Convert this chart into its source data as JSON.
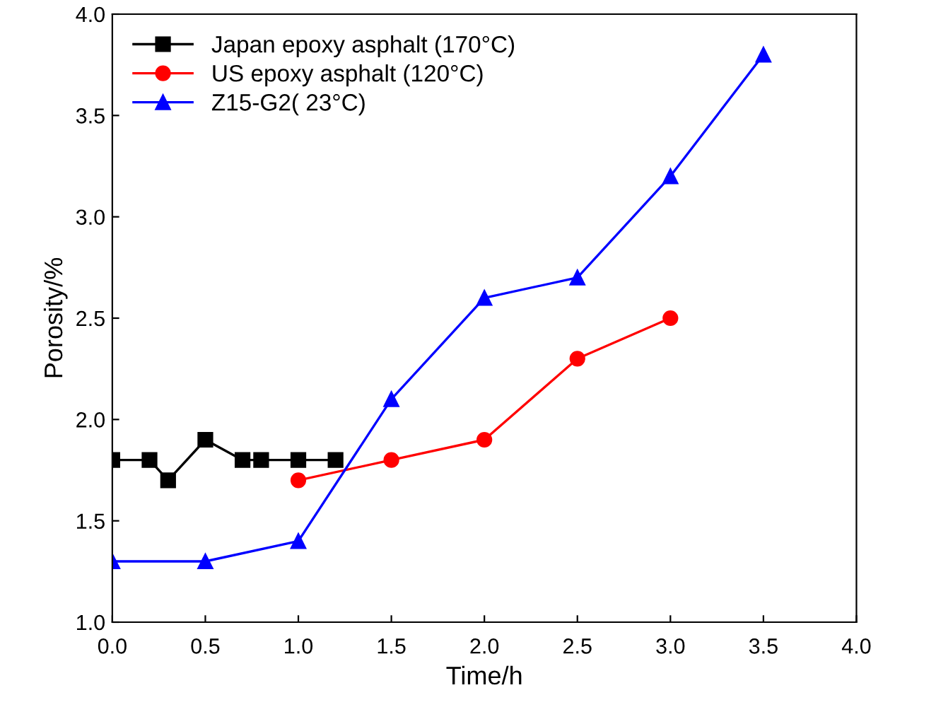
{
  "chart_data": {
    "type": "line",
    "xlabel": "Time/h",
    "ylabel": "Porosity/%",
    "xlim": [
      0,
      4
    ],
    "ylim": [
      1.0,
      4.0
    ],
    "xticks": [
      {
        "value": 0,
        "label": "0.0"
      },
      0.5,
      {
        "value": 1,
        "label": "1.0"
      },
      1.5,
      {
        "value": 2,
        "label": "2.0"
      },
      2.5,
      {
        "value": 3,
        "label": "3.0"
      },
      3.5,
      {
        "value": 4,
        "label": "4.0"
      }
    ],
    "yticks": [
      {
        "value": 1,
        "label": "1.0"
      },
      1.5,
      {
        "value": 2,
        "label": "2.0"
      },
      2.5,
      {
        "value": 3,
        "label": "3.0"
      },
      3.5,
      {
        "value": 4,
        "label": "4.0"
      }
    ],
    "grid": false,
    "legend": "top left",
    "series": [
      {
        "name": "Japan epoxy asphalt (170°C)",
        "color": "#000000",
        "marker": "square",
        "x": [
          0,
          0.2,
          0.3,
          0.5,
          0.7,
          0.8,
          1.0,
          1.2
        ],
        "values": [
          1.8,
          1.8,
          1.7,
          1.9,
          1.8,
          1.8,
          1.8,
          1.8
        ]
      },
      {
        "name": "US epoxy asphalt (120°C)",
        "color": "#ff0000",
        "marker": "circle",
        "x": [
          1.0,
          1.5,
          2.0,
          2.5,
          3.0
        ],
        "values": [
          1.7,
          1.8,
          1.9,
          2.3,
          2.5
        ]
      },
      {
        "name": "Z15-G2( 23°C)",
        "color": "#0000ff",
        "marker": "triangle",
        "x": [
          0,
          0.5,
          1.0,
          1.5,
          2.0,
          2.5,
          3.0,
          3.5
        ],
        "values": [
          1.3,
          1.3,
          1.4,
          2.1,
          2.6,
          2.7,
          3.2,
          3.8
        ]
      }
    ]
  }
}
